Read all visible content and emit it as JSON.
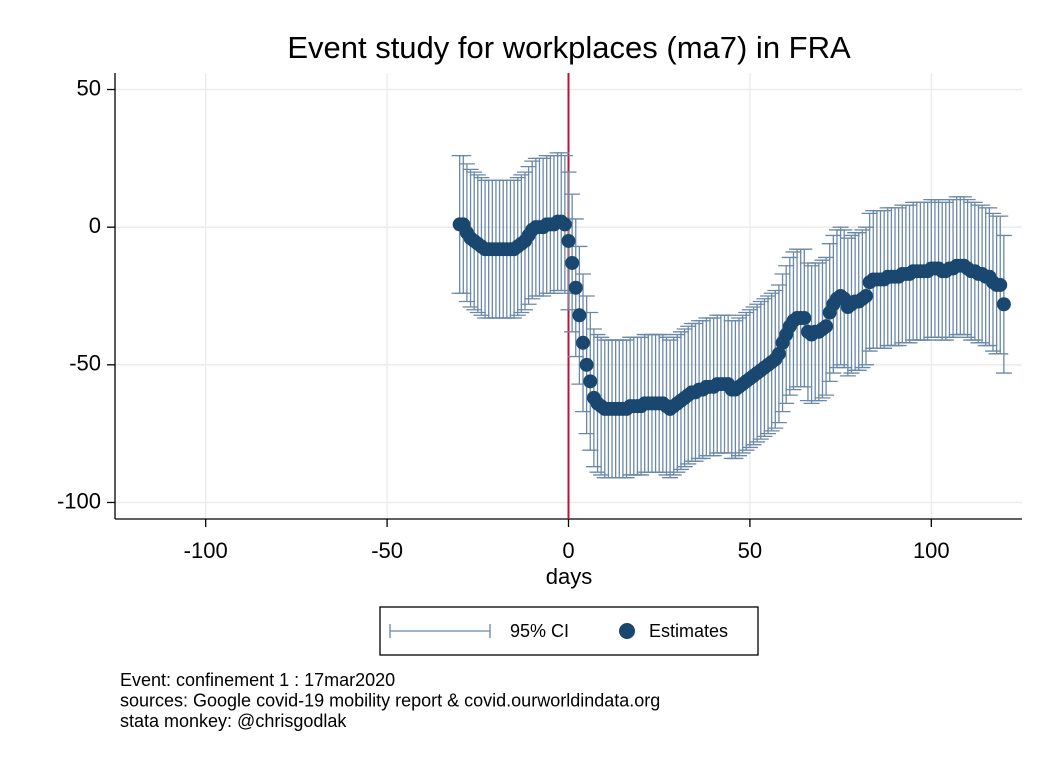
{
  "chart_data": {
    "type": "errorbar",
    "title": "Event study for workplaces (ma7) in FRA",
    "x_label": "days",
    "notes": [
      "Event: confinement 1 : 17mar2020",
      "sources: Google covid-19 mobility report & covid.ourworldindata.org",
      "stata monkey: @chrisgodlak"
    ],
    "x": [
      -30,
      -29,
      -28,
      -27,
      -26,
      -25,
      -24,
      -23,
      -22,
      -21,
      -20,
      -19,
      -18,
      -17,
      -16,
      -15,
      -14,
      -13,
      -12,
      -11,
      -10,
      -9,
      -8,
      -7,
      -6,
      -5,
      -4,
      -3,
      -2,
      -1,
      0,
      1,
      2,
      3,
      4,
      5,
      6,
      7,
      8,
      9,
      10,
      11,
      12,
      13,
      14,
      15,
      16,
      17,
      18,
      19,
      20,
      21,
      22,
      23,
      24,
      25,
      26,
      27,
      28,
      29,
      30,
      31,
      32,
      33,
      34,
      35,
      36,
      37,
      38,
      39,
      40,
      41,
      42,
      43,
      44,
      45,
      46,
      47,
      48,
      49,
      50,
      51,
      52,
      53,
      54,
      55,
      56,
      57,
      58,
      59,
      60,
      61,
      62,
      63,
      64,
      65,
      66,
      67,
      68,
      69,
      70,
      71,
      72,
      73,
      74,
      75,
      76,
      77,
      78,
      79,
      80,
      81,
      82,
      83,
      84,
      85,
      86,
      87,
      88,
      89,
      90,
      91,
      92,
      93,
      94,
      95,
      96,
      97,
      98,
      99,
      100,
      101,
      102,
      103,
      104,
      105,
      106,
      107,
      108,
      109,
      110,
      111,
      112,
      113,
      114,
      115,
      116,
      117,
      118,
      119,
      120
    ],
    "series": [
      {
        "name": "95% CI",
        "color": "#6a89a7",
        "lower": [
          -24,
          -24,
          -27,
          -29,
          -30,
          -31,
          -32,
          -33,
          -33,
          -33,
          -33,
          -33,
          -33,
          -33,
          -33,
          -33,
          -32,
          -31,
          -30,
          -28,
          -26,
          -25,
          -25,
          -25,
          -24,
          -24,
          -24,
          -23,
          -23,
          -24,
          -30,
          -38,
          -47,
          -57,
          -67,
          -75,
          -81,
          -87,
          -89,
          -90,
          -91,
          -91,
          -91,
          -91,
          -91,
          -91,
          -91,
          -90,
          -90,
          -90,
          -90,
          -89,
          -89,
          -89,
          -89,
          -89,
          -89,
          -90,
          -91,
          -90,
          -89,
          -88,
          -87,
          -86,
          -85,
          -85,
          -84,
          -84,
          -83,
          -83,
          -83,
          -82,
          -82,
          -82,
          -82,
          -84,
          -84,
          -83,
          -82,
          -81,
          -80,
          -79,
          -78,
          -77,
          -76,
          -75,
          -74,
          -73,
          -71,
          -67,
          -64,
          -61,
          -59,
          -58,
          -58,
          -58,
          -63,
          -64,
          -63,
          -63,
          -62,
          -61,
          -56,
          -53,
          -51,
          -50,
          -51,
          -54,
          -53,
          -52,
          -52,
          -51,
          -50,
          -45,
          -44,
          -44,
          -44,
          -44,
          -43,
          -43,
          -43,
          -43,
          -42,
          -42,
          -42,
          -41,
          -41,
          -41,
          -41,
          -41,
          -40,
          -40,
          -40,
          -41,
          -41,
          -40,
          -40,
          -39,
          -39,
          -39,
          -40,
          -41,
          -41,
          -42,
          -42,
          -43,
          -43,
          -45,
          -46,
          -46,
          -53
        ],
        "upper": [
          26,
          26,
          23,
          21,
          20,
          19,
          18,
          17,
          17,
          17,
          17,
          17,
          17,
          17,
          17,
          17,
          18,
          19,
          20,
          22,
          24,
          25,
          25,
          25,
          26,
          26,
          26,
          27,
          27,
          26,
          20,
          12,
          3,
          -7,
          -17,
          -25,
          -31,
          -37,
          -39,
          -40,
          -41,
          -41,
          -41,
          -41,
          -41,
          -41,
          -41,
          -40,
          -40,
          -40,
          -40,
          -39,
          -39,
          -39,
          -39,
          -39,
          -39,
          -40,
          -41,
          -40,
          -39,
          -38,
          -37,
          -36,
          -35,
          -35,
          -34,
          -34,
          -33,
          -33,
          -33,
          -32,
          -32,
          -32,
          -32,
          -34,
          -34,
          -33,
          -32,
          -31,
          -30,
          -29,
          -28,
          -27,
          -26,
          -25,
          -24,
          -23,
          -21,
          -17,
          -14,
          -11,
          -9,
          -8,
          -8,
          -8,
          -13,
          -14,
          -13,
          -13,
          -12,
          -11,
          -6,
          -3,
          -1,
          0,
          -1,
          -4,
          -3,
          -2,
          -2,
          -1,
          0,
          5,
          6,
          6,
          6,
          6,
          7,
          7,
          7,
          7,
          8,
          8,
          8,
          9,
          9,
          9,
          9,
          9,
          10,
          10,
          10,
          9,
          9,
          10,
          10,
          11,
          11,
          11,
          10,
          9,
          9,
          8,
          8,
          7,
          7,
          5,
          4,
          4,
          -3
        ]
      },
      {
        "name": "Estimates",
        "color": "#1a476f",
        "values": [
          1,
          1,
          -2,
          -4,
          -5,
          -6,
          -7,
          -8,
          -8,
          -8,
          -8,
          -8,
          -8,
          -8,
          -8,
          -8,
          -7,
          -6,
          -5,
          -3,
          -1,
          0,
          0,
          0,
          1,
          1,
          1,
          2,
          2,
          1,
          -5,
          -13,
          -22,
          -32,
          -42,
          -50,
          -56,
          -62,
          -64,
          -65,
          -66,
          -66,
          -66,
          -66,
          -66,
          -66,
          -66,
          -65,
          -65,
          -65,
          -65,
          -64,
          -64,
          -64,
          -64,
          -64,
          -64,
          -65,
          -66,
          -65,
          -64,
          -63,
          -62,
          -61,
          -60,
          -60,
          -59,
          -59,
          -58,
          -58,
          -58,
          -57,
          -57,
          -57,
          -57,
          -59,
          -59,
          -58,
          -57,
          -56,
          -55,
          -54,
          -53,
          -52,
          -51,
          -50,
          -49,
          -48,
          -46,
          -42,
          -39,
          -36,
          -34,
          -33,
          -33,
          -33,
          -38,
          -39,
          -38,
          -38,
          -37,
          -36,
          -31,
          -28,
          -26,
          -25,
          -26,
          -29,
          -28,
          -27,
          -27,
          -26,
          -25,
          -20,
          -19,
          -19,
          -19,
          -19,
          -18,
          -18,
          -18,
          -18,
          -17,
          -17,
          -17,
          -16,
          -16,
          -16,
          -16,
          -16,
          -15,
          -15,
          -15,
          -16,
          -16,
          -15,
          -15,
          -14,
          -14,
          -14,
          -15,
          -16,
          -16,
          -17,
          -17,
          -18,
          -18,
          -20,
          -21,
          -21,
          -28
        ]
      }
    ],
    "event_line": {
      "x": 0,
      "color": "#c0103a"
    },
    "xlim": [
      -125,
      125
    ],
    "xticks": [
      -100,
      -50,
      0,
      50,
      100
    ],
    "ylim": [
      -106,
      56
    ],
    "yticks": [
      -100,
      -50,
      0,
      50
    ],
    "grid": true,
    "legend": "bottom"
  }
}
